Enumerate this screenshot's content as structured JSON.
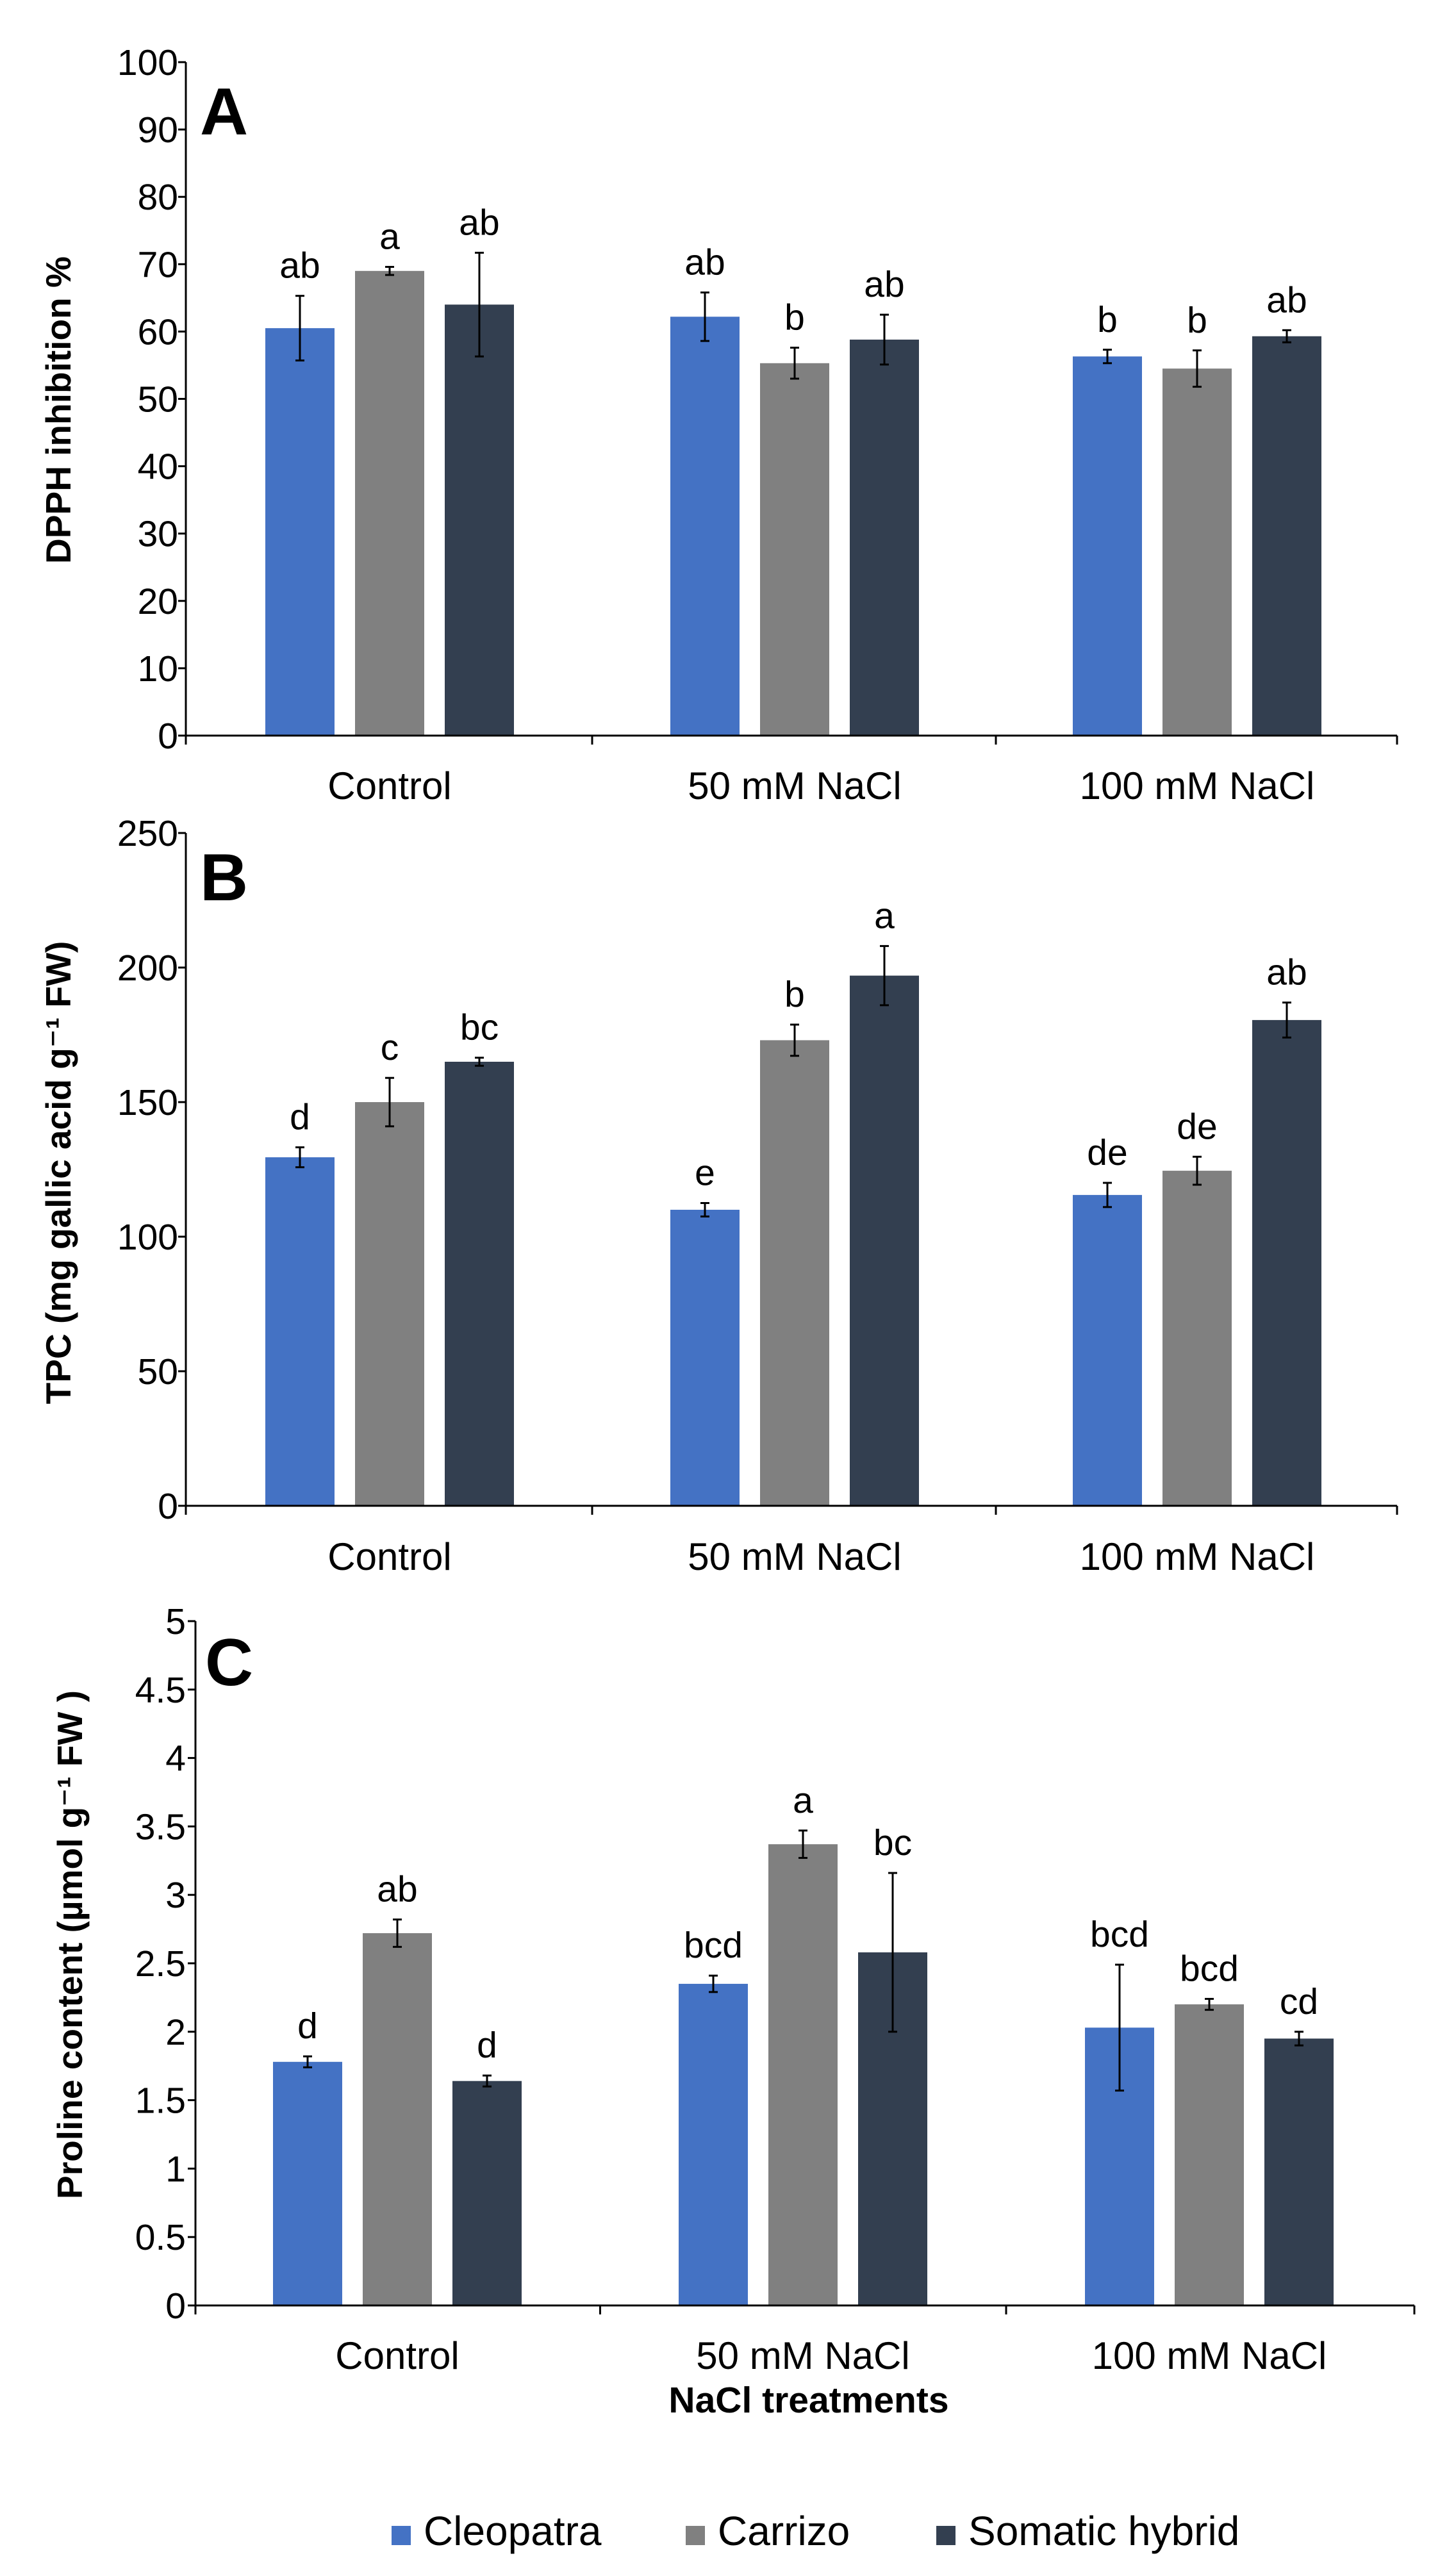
{
  "chart_data": [
    {
      "type": "bar",
      "panel": "A",
      "ylabel": "DPPH inhibition %",
      "xlabel": "",
      "ylim": [
        0,
        100
      ],
      "yticks": [
        0,
        10,
        20,
        30,
        40,
        50,
        60,
        70,
        80,
        90,
        100
      ],
      "categories": [
        "Control",
        "50 mM NaCl",
        "100 mM NaCl"
      ],
      "series": [
        {
          "name": "Cleopatra",
          "values": [
            60.5,
            62.2,
            56.3
          ],
          "errors": [
            4.8,
            3.6,
            1.0
          ],
          "letters": [
            "ab",
            "ab",
            "b"
          ]
        },
        {
          "name": "Carrizo",
          "values": [
            69.0,
            55.3,
            54.5
          ],
          "errors": [
            0.6,
            2.3,
            2.7
          ],
          "letters": [
            "a",
            "b",
            "b"
          ]
        },
        {
          "name": "Somatic hybrid",
          "values": [
            64.0,
            58.8,
            59.3
          ],
          "errors": [
            7.7,
            3.7,
            0.9
          ],
          "letters": [
            "ab",
            "ab",
            "ab"
          ]
        }
      ]
    },
    {
      "type": "bar",
      "panel": "B",
      "ylabel": "TPC (mg gallic acid g⁻¹ FW)",
      "xlabel": "",
      "ylim": [
        0,
        250
      ],
      "yticks": [
        0,
        50,
        100,
        150,
        200,
        250
      ],
      "categories": [
        "Control",
        "50 mM NaCl",
        "100 mM NaCl"
      ],
      "series": [
        {
          "name": "Cleopatra",
          "values": [
            129.5,
            110.0,
            115.5
          ],
          "errors": [
            3.7,
            2.5,
            4.5
          ],
          "letters": [
            "d",
            "e",
            "de"
          ]
        },
        {
          "name": "Carrizo",
          "values": [
            150.0,
            173.0,
            124.5
          ],
          "errors": [
            9.0,
            5.8,
            5.2
          ],
          "letters": [
            "c",
            "b",
            "de"
          ]
        },
        {
          "name": "Somatic hybrid",
          "values": [
            165.0,
            197.0,
            180.5
          ],
          "errors": [
            1.5,
            11.0,
            6.5
          ],
          "letters": [
            "bc",
            "a",
            "ab"
          ]
        }
      ]
    },
    {
      "type": "bar",
      "panel": "C",
      "ylabel": "Proline content  (µmol g⁻¹ FW )",
      "xlabel": "NaCl treatments",
      "ylim": [
        0,
        5
      ],
      "yticks": [
        0,
        0.5,
        1,
        1.5,
        2,
        2.5,
        3,
        3.5,
        4,
        4.5,
        5
      ],
      "categories": [
        "Control",
        "50 mM NaCl",
        "100 mM NaCl"
      ],
      "series": [
        {
          "name": "Cleopatra",
          "values": [
            1.78,
            2.35,
            2.03
          ],
          "errors": [
            0.04,
            0.06,
            0.46
          ],
          "letters": [
            "d",
            "bcd",
            "bcd"
          ]
        },
        {
          "name": "Carrizo",
          "values": [
            2.72,
            3.37,
            2.2
          ],
          "errors": [
            0.1,
            0.1,
            0.04
          ],
          "letters": [
            "ab",
            "a",
            "bcd"
          ]
        },
        {
          "name": "Somatic hybrid",
          "values": [
            1.64,
            2.58,
            1.95
          ],
          "errors": [
            0.04,
            0.58,
            0.05
          ],
          "letters": [
            "d",
            "bc",
            "cd"
          ]
        }
      ]
    }
  ],
  "legend": {
    "items": [
      {
        "label": "Cleopatra",
        "color": "#4472C4"
      },
      {
        "label": "Carrizo",
        "color": "#808080"
      },
      {
        "label": "Somatic hybrid",
        "color": "#333F50"
      }
    ]
  }
}
